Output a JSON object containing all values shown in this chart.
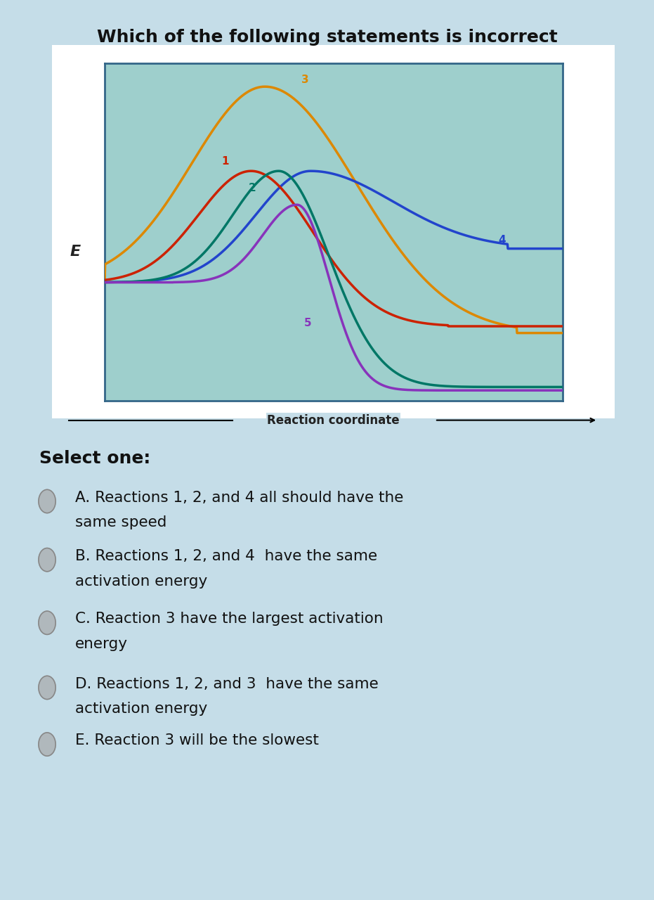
{
  "title": "Which of the following statements is incorrect",
  "bg_color": "#c5dde8",
  "chart_bg": "#9ecfcc",
  "chart_border_color": "#336688",
  "reaction_coord_label": "Reaction coordinate",
  "ylabel": "E",
  "options": [
    {
      "label": "A.",
      "text1": "Reactions 1, 2, and 4 all should have the",
      "text2": "same speed"
    },
    {
      "label": "B.",
      "text1": "Reactions 1, 2, and 4  have the same",
      "text2": "activation energy"
    },
    {
      "label": "C.",
      "text1": "Reaction 3 have the largest activation",
      "text2": "energy"
    },
    {
      "label": "D.",
      "text1": "Reactions 1, 2, and 3  have the same",
      "text2": "activation energy"
    },
    {
      "label": "E.",
      "text1": "Reaction 3 will be the slowest",
      "text2": ""
    }
  ],
  "select_one": "Select one:",
  "curves": {
    "1": {
      "color": "#cc2200"
    },
    "2": {
      "color": "#007766"
    },
    "3": {
      "color": "#dd8800"
    },
    "4": {
      "color": "#2244cc"
    },
    "5": {
      "color": "#8833bb"
    }
  }
}
